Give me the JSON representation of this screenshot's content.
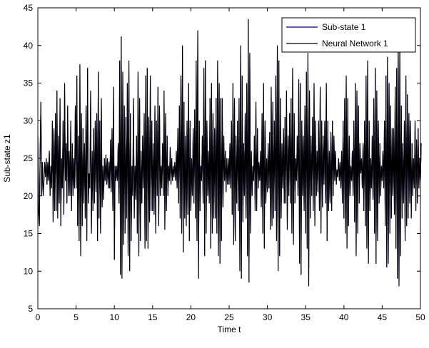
{
  "chart_data": {
    "type": "line",
    "title": "",
    "xlabel": "Time t",
    "ylabel": "Sub-state z1",
    "xlim": [
      0,
      50
    ],
    "ylim": [
      5,
      45
    ],
    "xticks": [
      "0",
      "5",
      "10",
      "15",
      "20",
      "25",
      "30",
      "35",
      "40",
      "45",
      "50"
    ],
    "yticks": [
      "5",
      "10",
      "15",
      "20",
      "25",
      "30",
      "35",
      "40",
      "45"
    ],
    "grid": false,
    "legend_position": "top-right",
    "series": [
      {
        "name": "Sub-state 1",
        "color": "#00007f"
      },
      {
        "name": "Neural Network 1",
        "color": "#000000"
      }
    ],
    "x_step": 0.1,
    "y": [
      28,
      18,
      16,
      26,
      32.5,
      20,
      24.5,
      20,
      22,
      24.5,
      22.5,
      25,
      21.5,
      24.5,
      22,
      26,
      20,
      24,
      21,
      30,
      16.5,
      29,
      18,
      31,
      18,
      34,
      17,
      28,
      19,
      33,
      16,
      25,
      21,
      30,
      17.5,
      35,
      22,
      27,
      19,
      32,
      20,
      26,
      20,
      30,
      18,
      27,
      20,
      25,
      21,
      32,
      21,
      36,
      16,
      28,
      14,
      37.5,
      12,
      31,
      16,
      29,
      19,
      27,
      17,
      32,
      14,
      37,
      19,
      23,
      21,
      34,
      15,
      26,
      18,
      29,
      19,
      30,
      20.5,
      31,
      14,
      36.5,
      17,
      30,
      15,
      33,
      18.5,
      24,
      19.5,
      25,
      22,
      25.5,
      21.5,
      25,
      21,
      24.5,
      21,
      27.5,
      20.5,
      29,
      18,
      34.5,
      11.5,
      24,
      22,
      24,
      22,
      27,
      19,
      38,
      9.5,
      41.2,
      9,
      36.5,
      13.5,
      32,
      15,
      30.5,
      17,
      35,
      12,
      38,
      10,
      31,
      14,
      24,
      20,
      33,
      17,
      24,
      19.5,
      28,
      15,
      36.5,
      12,
      33,
      14,
      26,
      19,
      28,
      21,
      31,
      13,
      36,
      14,
      37,
      13,
      30.5,
      16.5,
      36,
      18,
      30,
      18,
      27,
      17.5,
      32,
      15,
      30,
      20,
      34.5,
      16,
      32,
      20,
      24,
      21,
      27,
      20,
      34,
      15.5,
      31,
      18,
      28,
      20,
      24,
      22,
      26.5,
      21.5,
      25,
      22,
      24,
      22.5,
      24.5,
      22,
      26,
      21,
      29,
      19,
      32,
      17,
      36,
      15,
      40,
      12.5,
      32.5,
      17,
      28,
      16,
      30,
      17.5,
      35,
      14,
      30,
      18,
      25,
      20,
      29,
      19,
      31.5,
      17,
      38,
      14,
      42,
      9,
      30,
      18,
      24,
      22,
      28,
      19,
      37,
      12,
      38,
      15,
      30,
      20,
      26,
      19,
      33,
      13,
      35,
      15,
      31,
      17,
      29,
      17,
      33,
      15,
      38,
      12,
      35,
      11,
      33,
      14,
      33,
      18.5,
      28,
      22,
      26,
      20.5,
      25,
      21.5,
      25,
      21.5,
      27,
      21,
      30,
      17.5,
      35,
      13.5,
      33,
      14,
      28,
      19,
      30,
      18,
      33,
      10,
      40,
      9,
      36,
      16.5,
      27,
      20,
      31,
      17,
      35,
      12,
      43.5,
      8.5,
      39,
      15,
      26,
      20,
      24,
      22,
      28,
      18,
      32.5,
      18,
      29,
      21,
      24.5,
      22,
      26,
      18.5,
      31,
      15,
      35,
      13,
      30,
      19,
      25,
      20.5,
      27,
      21,
      28.5,
      15.5,
      34.5,
      16,
      32.5,
      17,
      30,
      18,
      36,
      14,
      40,
      10,
      38,
      12,
      33,
      17,
      27,
      21,
      29,
      19,
      30.5,
      19,
      34,
      15.5,
      28,
      20,
      31,
      19,
      33,
      15,
      37,
      13.5,
      31,
      19,
      25,
      22,
      28,
      20,
      35.5,
      11,
      35,
      9.5,
      30,
      20,
      28,
      18,
      32,
      15,
      36.5,
      13,
      39,
      8,
      34,
      17,
      28,
      20,
      30.5,
      18,
      35,
      16,
      30,
      20,
      26,
      20.5,
      30,
      18,
      34.5,
      15,
      30,
      18.5,
      28,
      21.5,
      30,
      19,
      35,
      14,
      30,
      18,
      26,
      19,
      28.5,
      18,
      30,
      20,
      28,
      22,
      26,
      21.5,
      23.5,
      22.5,
      25,
      22,
      24.5,
      21,
      26,
      19,
      30,
      17,
      33,
      15,
      36,
      13,
      33,
      16,
      28,
      20,
      24,
      22,
      26,
      20,
      30,
      16.5,
      35,
      12,
      34,
      15,
      32,
      19,
      27,
      23,
      25,
      21,
      27,
      18,
      30,
      16,
      36,
      13,
      38,
      11,
      30,
      18,
      25,
      21,
      28,
      19.5,
      33,
      15,
      37,
      11,
      34,
      14,
      30,
      19,
      27,
      20,
      24,
      22,
      26,
      21,
      30,
      16,
      36,
      10.5,
      38.5,
      11,
      35,
      15,
      32,
      17,
      29,
      20,
      29,
      17.5,
      34.5,
      13,
      37,
      9,
      41,
      8,
      40.5,
      12,
      32,
      17,
      27,
      19,
      30,
      14,
      36,
      16,
      33.5,
      17,
      31,
      19,
      30,
      17,
      27,
      20,
      25,
      21,
      30,
      18,
      27.5,
      19,
      29,
      21,
      25,
      22,
      27
    ]
  }
}
